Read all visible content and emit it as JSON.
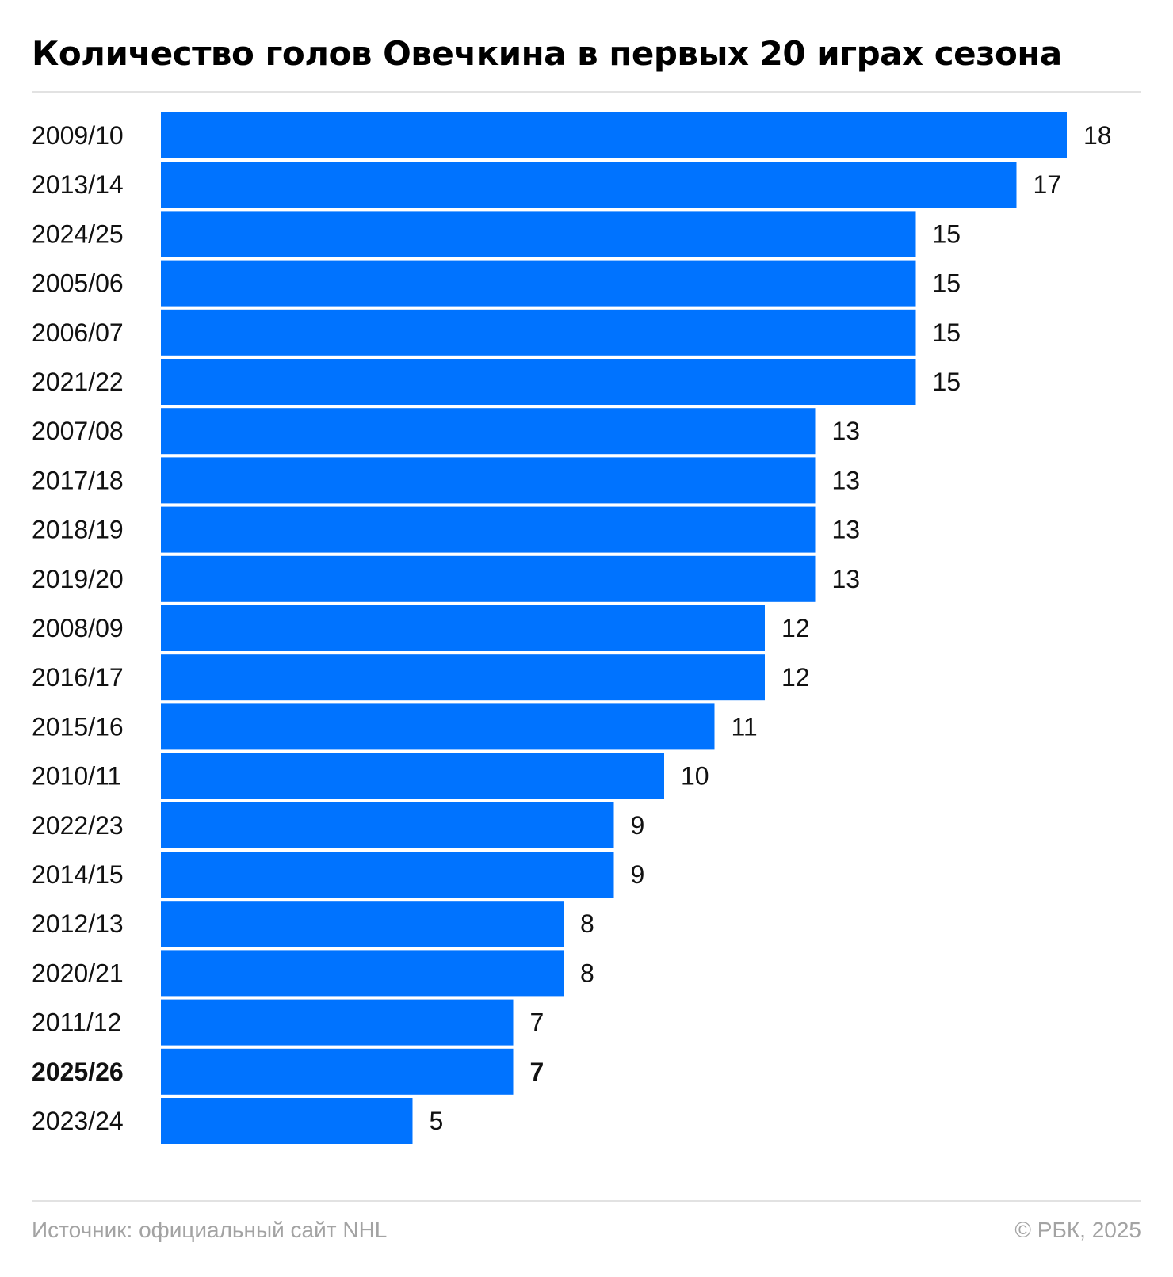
{
  "chart_data": {
    "type": "bar",
    "orientation": "horizontal",
    "title": "Количество голов Овечкина в первых 20 играх сезона",
    "categories": [
      "2009/10",
      "2013/14",
      "2024/25",
      "2005/06",
      "2006/07",
      "2021/22",
      "2007/08",
      "2017/18",
      "2018/19",
      "2019/20",
      "2008/09",
      "2016/17",
      "2015/16",
      "2010/11",
      "2022/23",
      "2014/15",
      "2012/13",
      "2020/21",
      "2011/12",
      "2025/26",
      "2023/24"
    ],
    "values": [
      18,
      17,
      15,
      15,
      15,
      15,
      13,
      13,
      13,
      13,
      12,
      12,
      11,
      10,
      9,
      9,
      8,
      8,
      7,
      7,
      5
    ],
    "value_labels": [
      "18",
      "17",
      "15",
      "15",
      "15",
      "15",
      "13",
      "13",
      "13",
      "13",
      "12",
      "12",
      "11",
      "10",
      "9",
      "9",
      "8",
      "8",
      "7",
      "7",
      "5"
    ],
    "highlighted_category": "2025/26",
    "xlim": [
      0,
      18
    ],
    "xlabel": "",
    "ylabel": "",
    "grid": false,
    "legend": "none",
    "bar_color": "#0073ff"
  },
  "footer": {
    "source": "Источник: официальный сайт NHL",
    "credit": "© РБК, 2025"
  },
  "colors": {
    "bar": "#0073ff",
    "text": "#111111",
    "muted": "#a3a3a3",
    "rule": "#e2e2e2"
  }
}
